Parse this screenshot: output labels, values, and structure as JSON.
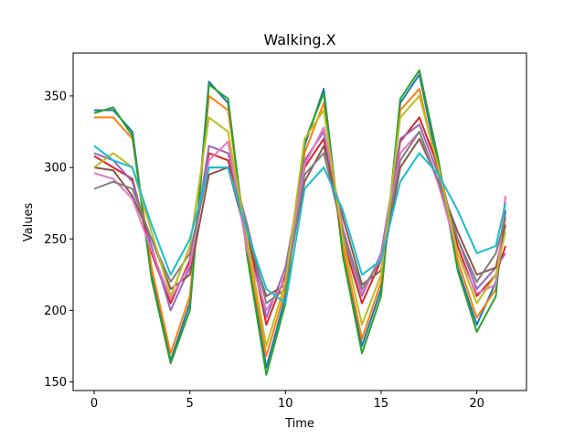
{
  "chart_data": {
    "type": "line",
    "title": "Walking.X",
    "xlabel": "Time",
    "ylabel": "Values",
    "xlim": [
      -1.1,
      22.6
    ],
    "ylim": [
      144,
      380
    ],
    "xticks": [
      0,
      5,
      10,
      15,
      20
    ],
    "yticks": [
      150,
      200,
      250,
      300,
      350
    ],
    "grid": false,
    "legend": "none",
    "colors": [
      "#1f77b4",
      "#ff7f0e",
      "#2ca02c",
      "#d62728",
      "#9467bd",
      "#8c564b",
      "#e377c2",
      "#7f7f7f",
      "#bcbd22",
      "#17becf"
    ],
    "x": [
      0,
      1,
      2,
      3,
      4,
      5,
      6,
      7,
      8,
      9,
      10,
      11,
      12,
      13,
      14,
      15,
      16,
      17,
      18,
      19,
      20,
      21,
      21.5
    ],
    "series": [
      {
        "values": [
          340,
          340,
          325,
          225,
          165,
          205,
          360,
          345,
          240,
          160,
          210,
          315,
          355,
          240,
          175,
          215,
          345,
          365,
          300,
          230,
          190,
          220,
          270
        ]
      },
      {
        "values": [
          335,
          335,
          320,
          230,
          170,
          210,
          350,
          340,
          245,
          168,
          215,
          310,
          345,
          245,
          180,
          220,
          340,
          355,
          295,
          235,
          195,
          215,
          265
        ]
      },
      {
        "values": [
          338,
          342,
          322,
          222,
          163,
          200,
          358,
          348,
          238,
          155,
          205,
          318,
          352,
          238,
          170,
          210,
          348,
          368,
          305,
          228,
          185,
          210,
          280
        ]
      },
      {
        "values": [
          308,
          300,
          292,
          240,
          205,
          235,
          310,
          305,
          255,
          190,
          225,
          300,
          320,
          250,
          205,
          235,
          318,
          335,
          300,
          245,
          210,
          225,
          245
        ]
      },
      {
        "values": [
          310,
          305,
          290,
          245,
          200,
          230,
          315,
          310,
          260,
          195,
          230,
          305,
          325,
          255,
          210,
          240,
          320,
          330,
          295,
          250,
          215,
          230,
          240
        ]
      },
      {
        "values": [
          300,
          298,
          280,
          250,
          215,
          225,
          295,
          300,
          250,
          210,
          218,
          290,
          315,
          265,
          218,
          228,
          300,
          320,
          290,
          255,
          225,
          230,
          260
        ]
      },
      {
        "values": [
          296,
          292,
          278,
          242,
          208,
          232,
          305,
          318,
          242,
          200,
          222,
          302,
          328,
          258,
          212,
          238,
          310,
          325,
          288,
          240,
          212,
          218,
          280
        ]
      },
      {
        "values": [
          285,
          290,
          285,
          250,
          220,
          240,
          300,
          300,
          260,
          205,
          215,
          295,
          310,
          255,
          215,
          235,
          305,
          325,
          290,
          250,
          220,
          240,
          265
        ]
      },
      {
        "values": [
          300,
          310,
          300,
          255,
          210,
          245,
          335,
          325,
          250,
          175,
          220,
          320,
          340,
          250,
          190,
          225,
          335,
          350,
          300,
          240,
          205,
          225,
          255
        ]
      },
      {
        "values": [
          315,
          305,
          300,
          260,
          225,
          250,
          300,
          300,
          255,
          215,
          205,
          285,
          300,
          270,
          225,
          235,
          290,
          310,
          295,
          270,
          240,
          245,
          275
        ]
      }
    ]
  }
}
